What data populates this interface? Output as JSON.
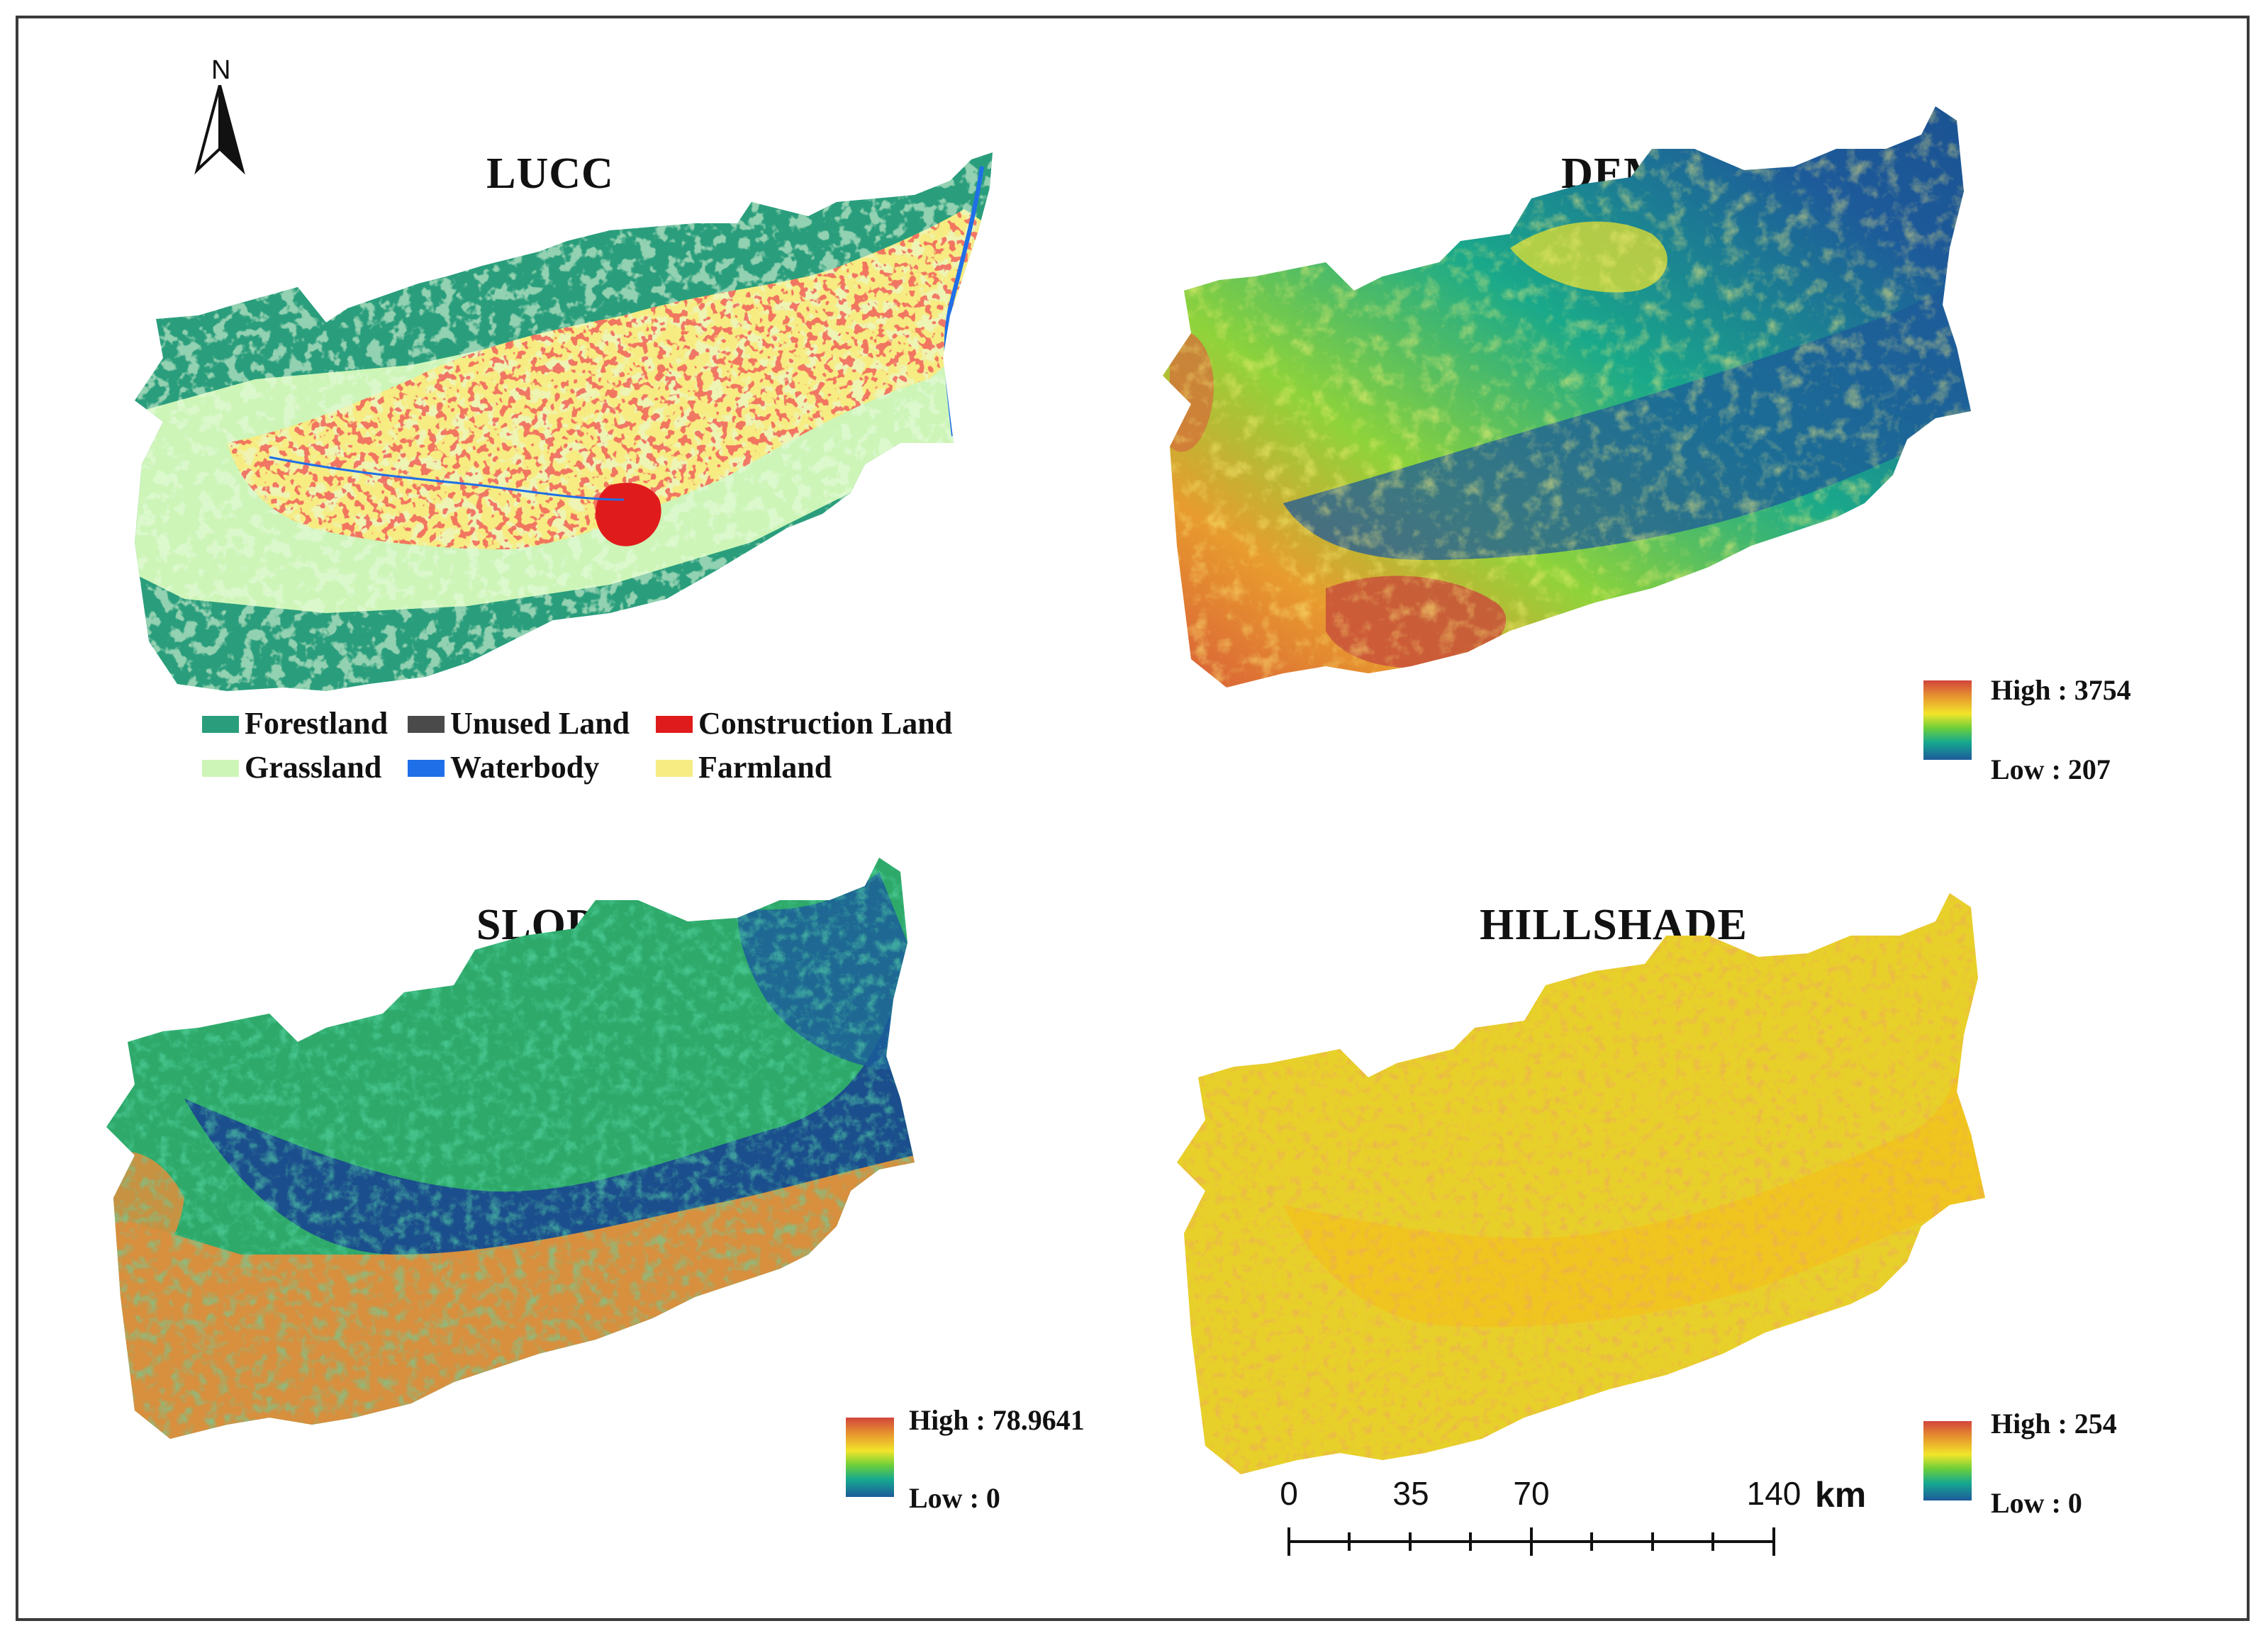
{
  "north_arrow": {
    "label": "N"
  },
  "panels": {
    "lucc": {
      "title": "LUCC",
      "legend": [
        {
          "label": "Forestland",
          "color": "#2a9e7c"
        },
        {
          "label": "Unused Land",
          "color": "#4a4a4a"
        },
        {
          "label": "Construction Land",
          "color": "#e01b1b"
        },
        {
          "label": "Grassland",
          "color": "#cdf5b8"
        },
        {
          "label": "Waterbody",
          "color": "#1f6fe8"
        },
        {
          "label": "Farmland",
          "color": "#f6ec82"
        }
      ]
    },
    "dem": {
      "title": "DEM",
      "high": "High : 3754",
      "low": "Low : 207"
    },
    "slope": {
      "title": "SLOPE",
      "high": "High : 78.9641",
      "low": "Low : 0"
    },
    "hillshade": {
      "title": "HILLSHADE",
      "high": "High : 254",
      "low": "Low : 0"
    }
  },
  "scale_bar": {
    "ticks": [
      "0",
      "35",
      "70",
      "140"
    ],
    "unit": "km"
  },
  "colors": {
    "ramp_high": "#d2453c",
    "ramp_mid": "#f2e52a",
    "ramp_low": "#1d5a9a"
  }
}
